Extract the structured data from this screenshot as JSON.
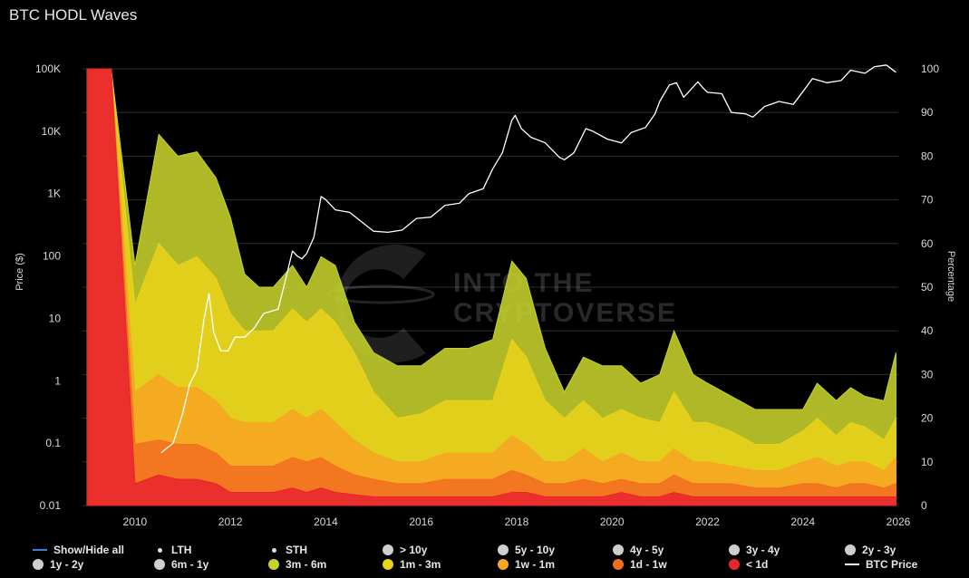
{
  "title": "BTC HODL Waves",
  "watermark": [
    "INTO THE",
    "CRYPTOVERSE"
  ],
  "chart_data": {
    "type": "area",
    "x_axis": {
      "range": [
        2008.9,
        2026.0
      ],
      "ticks": [
        "2010",
        "2012",
        "2014",
        "2016",
        "2018",
        "2020",
        "2022",
        "2024",
        "2026"
      ]
    },
    "left_axis": {
      "label": "Price ($)",
      "scale": "log",
      "range": [
        0.01,
        100000
      ],
      "ticks": [
        "0.01",
        "0.1",
        "1",
        "10",
        "100",
        "1K",
        "10K",
        "100K"
      ]
    },
    "right_axis": {
      "label": "Percentage",
      "range": [
        0,
        100
      ],
      "ticks": [
        "0",
        "10",
        "20",
        "30",
        "40",
        "50",
        "60",
        "70",
        "80",
        "90",
        "100"
      ]
    },
    "grid": true,
    "legend_position": "bottom",
    "x": [
      2009.0,
      2009.5,
      2010.0,
      2010.5,
      2010.9,
      2011.3,
      2011.7,
      2012.0,
      2012.3,
      2012.6,
      2012.9,
      2013.3,
      2013.6,
      2013.9,
      2014.2,
      2014.6,
      2015.0,
      2015.5,
      2016.0,
      2016.5,
      2017.0,
      2017.5,
      2017.9,
      2018.2,
      2018.6,
      2019.0,
      2019.4,
      2019.8,
      2020.2,
      2020.6,
      2021.0,
      2021.3,
      2021.7,
      2022.0,
      2022.5,
      2023.0,
      2023.5,
      2024.0,
      2024.3,
      2024.7,
      2025.0,
      2025.3,
      2025.7,
      2025.95
    ],
    "series": [
      {
        "name": "< 1d",
        "color": "#e8262d",
        "values": [
          100,
          100,
          5,
          7,
          6,
          6,
          5,
          3,
          3,
          3,
          3,
          4,
          3,
          4,
          3,
          2.5,
          2,
          2,
          2,
          2,
          2,
          2,
          3,
          3,
          2,
          2,
          2,
          2,
          3,
          2,
          2,
          3,
          2,
          2,
          2,
          2,
          2,
          2,
          2,
          2,
          2,
          2,
          2,
          2
        ]
      },
      {
        "name": "1d - 1w",
        "color": "#f26f21",
        "values": [
          100,
          100,
          14,
          15,
          14,
          14,
          12,
          9,
          9,
          9,
          9,
          11,
          10,
          11,
          9,
          7,
          6,
          5,
          5,
          6,
          6,
          6,
          8,
          7,
          5,
          5,
          6,
          5,
          6,
          5,
          5,
          7,
          5,
          5,
          5,
          4,
          4,
          5,
          5,
          4,
          5,
          5,
          4,
          5
        ]
      },
      {
        "name": "1w - 1m",
        "color": "#f6a623",
        "values": [
          100,
          100,
          26,
          30,
          27,
          27,
          24,
          20,
          19,
          19,
          19,
          22,
          20,
          22,
          19,
          15,
          12,
          10,
          10,
          12,
          12,
          12,
          16,
          14,
          10,
          10,
          13,
          10,
          12,
          10,
          10,
          13,
          10,
          10,
          9,
          8,
          8,
          10,
          11,
          9,
          10,
          10,
          8,
          11
        ]
      },
      {
        "name": "1m - 3m",
        "color": "#e9d21a",
        "values": [
          100,
          100,
          46,
          60,
          55,
          57,
          52,
          44,
          40,
          40,
          40,
          45,
          42,
          45,
          42,
          35,
          26,
          20,
          21,
          24,
          24,
          24,
          38,
          34,
          24,
          20,
          24,
          20,
          22,
          20,
          19,
          26,
          19,
          19,
          17,
          14,
          14,
          17,
          20,
          16,
          19,
          18,
          15,
          20
        ]
      },
      {
        "name": "3m - 6m",
        "color": "#c7d22c",
        "values": [
          100,
          100,
          55,
          85,
          80,
          81,
          75,
          66,
          53,
          50,
          50,
          55,
          50,
          57,
          55,
          42,
          35,
          32,
          32,
          36,
          36,
          38,
          56,
          52,
          36,
          26,
          34,
          32,
          32,
          28,
          30,
          40,
          30,
          28,
          25,
          22,
          22,
          22,
          28,
          24,
          27,
          25,
          24,
          35
        ]
      }
    ],
    "btc_price": {
      "name": "BTC Price",
      "color": "#ffffff",
      "x": [
        2010.55,
        2010.8,
        2011.0,
        2011.15,
        2011.3,
        2011.45,
        2011.55,
        2011.65,
        2011.8,
        2011.95,
        2012.1,
        2012.3,
        2012.5,
        2012.7,
        2012.85,
        2013.0,
        2013.15,
        2013.3,
        2013.4,
        2013.5,
        2013.6,
        2013.75,
        2013.9,
        2014.0,
        2014.2,
        2014.5,
        2014.8,
        2015.0,
        2015.3,
        2015.6,
        2015.9,
        2016.2,
        2016.5,
        2016.8,
        2017.0,
        2017.3,
        2017.5,
        2017.7,
        2017.9,
        2017.97,
        2018.1,
        2018.3,
        2018.6,
        2018.9,
        2019.0,
        2019.2,
        2019.45,
        2019.6,
        2019.9,
        2020.2,
        2020.4,
        2020.7,
        2020.9,
        2021.0,
        2021.2,
        2021.35,
        2021.5,
        2021.8,
        2021.9,
        2022.0,
        2022.3,
        2022.5,
        2022.8,
        2022.95,
        2023.2,
        2023.5,
        2023.8,
        2024.0,
        2024.2,
        2024.5,
        2024.8,
        2025.0,
        2025.3,
        2025.5,
        2025.75,
        2025.95
      ],
      "y": [
        0.07,
        0.1,
        0.3,
        0.9,
        1.5,
        10,
        25,
        6,
        3,
        3,
        5,
        5,
        7,
        12,
        13,
        14,
        40,
        120,
        100,
        90,
        110,
        200,
        900,
        800,
        550,
        500,
        330,
        250,
        240,
        260,
        400,
        420,
        650,
        700,
        1000,
        1200,
        2500,
        4500,
        15000,
        18000,
        11000,
        8000,
        6500,
        3800,
        3500,
        4500,
        11000,
        10000,
        7500,
        6500,
        9500,
        11500,
        19000,
        30000,
        55000,
        60000,
        35000,
        62000,
        50000,
        42000,
        40000,
        20000,
        19000,
        16800,
        25000,
        30000,
        27000,
        43000,
        70000,
        60000,
        65000,
        95000,
        85000,
        108000,
        115000,
        88000
      ]
    },
    "legend_items": [
      {
        "label": "Show/Hide all",
        "marker": "line",
        "color": "#3b7dd8"
      },
      {
        "label": "LTH",
        "marker": "small",
        "color": "#e0e0e0"
      },
      {
        "label": "STH",
        "marker": "small",
        "color": "#e0e0e0"
      },
      {
        "label": "> 10y",
        "marker": "dot",
        "color": "#cfcfcf"
      },
      {
        "label": "5y - 10y",
        "marker": "dot",
        "color": "#cfcfcf"
      },
      {
        "label": "4y - 5y",
        "marker": "dot",
        "color": "#cfcfcf"
      },
      {
        "label": "3y - 4y",
        "marker": "dot",
        "color": "#cfcfcf"
      },
      {
        "label": "2y - 3y",
        "marker": "dot",
        "color": "#cfcfcf"
      },
      {
        "label": "1y - 2y",
        "marker": "dot",
        "color": "#cfcfcf"
      },
      {
        "label": "6m - 1y",
        "marker": "dot",
        "color": "#cfcfcf"
      },
      {
        "label": "3m - 6m",
        "marker": "dot",
        "color": "#c7d22c"
      },
      {
        "label": "1m - 3m",
        "marker": "dot",
        "color": "#e9d21a"
      },
      {
        "label": "1w - 1m",
        "marker": "dot",
        "color": "#f6a623"
      },
      {
        "label": "1d - 1w",
        "marker": "dot",
        "color": "#f26f21"
      },
      {
        "label": "< 1d",
        "marker": "dot",
        "color": "#e8262d"
      },
      {
        "label": "BTC Price",
        "marker": "line",
        "color": "#ffffff"
      }
    ]
  }
}
